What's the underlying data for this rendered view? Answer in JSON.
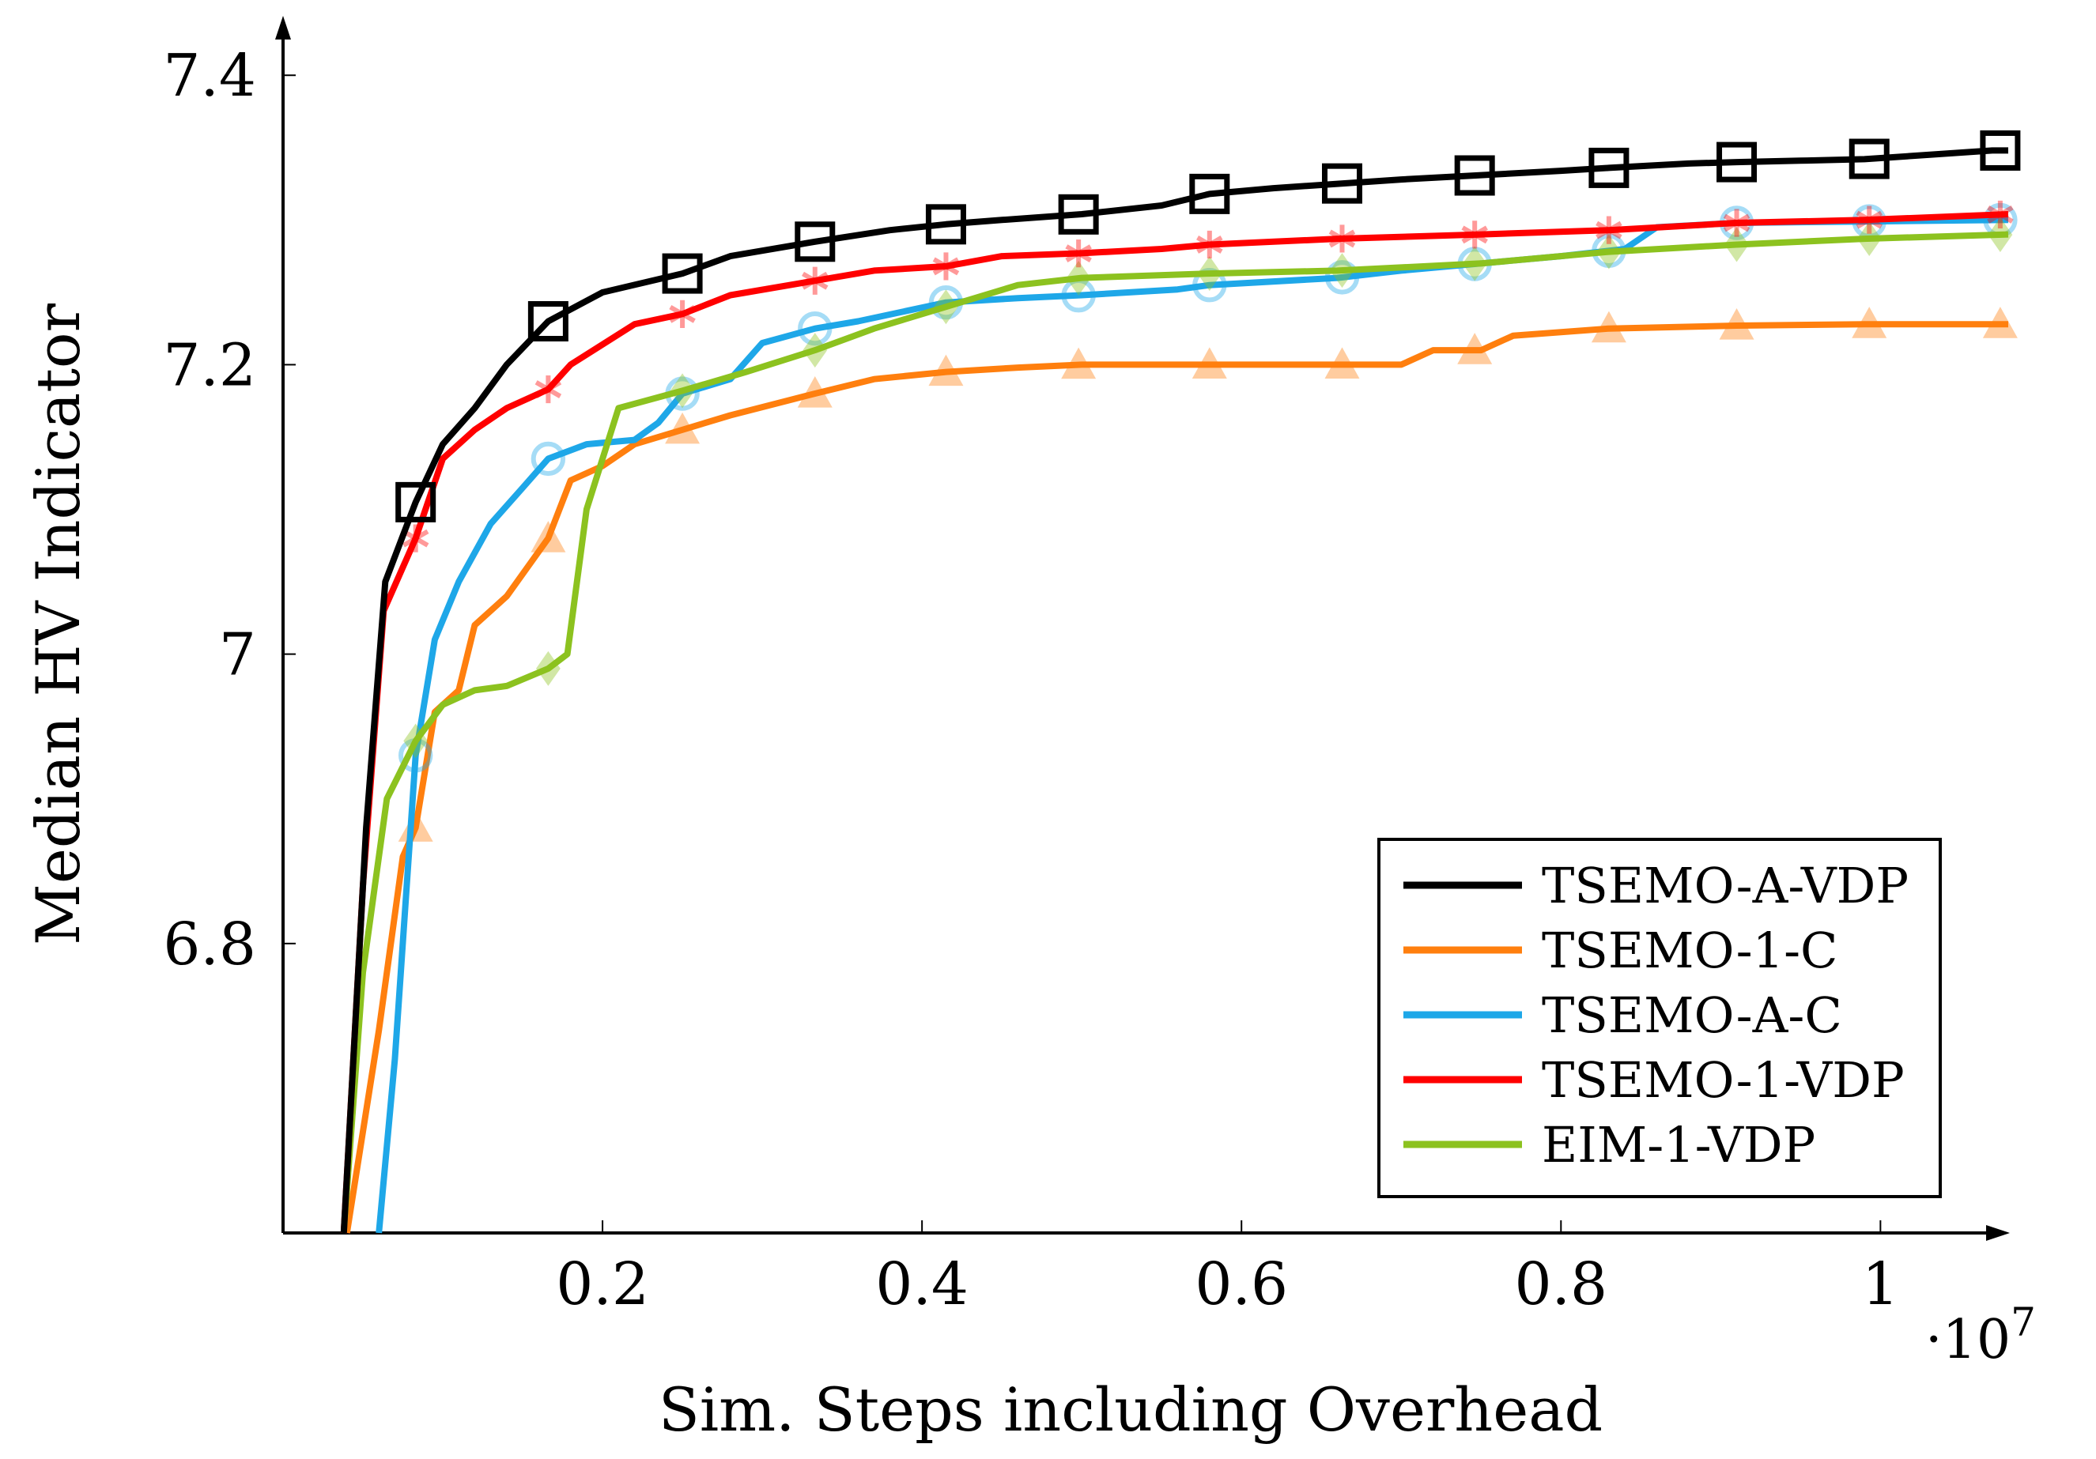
{
  "chart_data": {
    "type": "line",
    "title": "",
    "xlabel": "Sim. Steps including Overhead",
    "ylabel": "Median HV Indicator",
    "x_exponent_label": "·10",
    "x_exponent_power": "7",
    "x_scale": 10000000,
    "xlim": [
      0.0,
      1.08
    ],
    "ylim": [
      6.6,
      7.44
    ],
    "x_ticks": [
      0.2,
      0.4,
      0.6,
      0.8,
      1.0
    ],
    "x_tick_labels": [
      "0.2",
      "0.4",
      "0.6",
      "0.8",
      "1"
    ],
    "y_ticks": [
      6.8,
      7.0,
      7.2,
      7.4
    ],
    "y_tick_labels": [
      "6.8",
      "7",
      "7.2",
      "7.4"
    ],
    "grid": false,
    "legend_position": "bottom-right",
    "series": [
      {
        "name": "TSEMO-A-VDP",
        "color": "#000000",
        "marker": "square",
        "x": [
          0.038,
          0.052,
          0.064,
          0.083,
          0.1,
          0.12,
          0.14,
          0.166,
          0.2,
          0.25,
          0.28,
          0.333,
          0.38,
          0.415,
          0.45,
          0.5,
          0.55,
          0.58,
          0.62,
          0.66,
          0.7,
          0.75,
          0.8,
          0.83,
          0.88,
          0.91,
          0.95,
          0.99,
          1.03,
          1.07,
          1.08
        ],
        "y": [
          6.6,
          6.88,
          7.05,
          7.105,
          7.145,
          7.17,
          7.2,
          7.23,
          7.25,
          7.263,
          7.275,
          7.285,
          7.293,
          7.297,
          7.3,
          7.304,
          7.31,
          7.318,
          7.322,
          7.325,
          7.328,
          7.331,
          7.334,
          7.336,
          7.339,
          7.34,
          7.341,
          7.342,
          7.345,
          7.348,
          7.348
        ]
      },
      {
        "name": "TSEMO-1-C",
        "color": "#FF7F0E",
        "marker": "triangle",
        "x": [
          0.04,
          0.06,
          0.075,
          0.083,
          0.095,
          0.11,
          0.12,
          0.14,
          0.166,
          0.18,
          0.2,
          0.22,
          0.25,
          0.28,
          0.333,
          0.37,
          0.415,
          0.46,
          0.5,
          0.58,
          0.66,
          0.7,
          0.72,
          0.75,
          0.77,
          0.83,
          0.91,
          0.99,
          1.08
        ],
        "y": [
          6.6,
          6.74,
          6.86,
          6.88,
          6.96,
          6.975,
          7.02,
          7.04,
          7.08,
          7.12,
          7.13,
          7.145,
          7.155,
          7.165,
          7.18,
          7.19,
          7.195,
          7.198,
          7.2,
          7.2,
          7.2,
          7.2,
          7.21,
          7.21,
          7.22,
          7.225,
          7.227,
          7.228,
          7.228
        ]
      },
      {
        "name": "TSEMO-A-C",
        "color": "#1EA7E8",
        "marker": "circle",
        "x": [
          0.06,
          0.07,
          0.083,
          0.095,
          0.11,
          0.13,
          0.15,
          0.166,
          0.19,
          0.22,
          0.235,
          0.25,
          0.28,
          0.3,
          0.333,
          0.36,
          0.415,
          0.46,
          0.5,
          0.56,
          0.58,
          0.66,
          0.7,
          0.75,
          0.8,
          0.84,
          0.86,
          0.91,
          0.99,
          1.08
        ],
        "y": [
          6.6,
          6.72,
          6.93,
          7.01,
          7.05,
          7.09,
          7.115,
          7.135,
          7.145,
          7.148,
          7.16,
          7.18,
          7.19,
          7.215,
          7.225,
          7.23,
          7.243,
          7.246,
          7.248,
          7.252,
          7.255,
          7.26,
          7.265,
          7.27,
          7.275,
          7.28,
          7.295,
          7.298,
          7.299,
          7.3
        ]
      },
      {
        "name": "TSEMO-1-VDP",
        "color": "#FF0000",
        "marker": "asterisk",
        "x": [
          0.038,
          0.05,
          0.063,
          0.083,
          0.1,
          0.12,
          0.14,
          0.166,
          0.18,
          0.22,
          0.25,
          0.28,
          0.333,
          0.37,
          0.415,
          0.45,
          0.5,
          0.55,
          0.58,
          0.66,
          0.75,
          0.83,
          0.91,
          0.99,
          1.08
        ],
        "y": [
          6.6,
          6.84,
          7.03,
          7.08,
          7.135,
          7.155,
          7.17,
          7.183,
          7.2,
          7.228,
          7.235,
          7.248,
          7.258,
          7.265,
          7.268,
          7.275,
          7.277,
          7.28,
          7.283,
          7.287,
          7.29,
          7.293,
          7.298,
          7.3,
          7.304
        ]
      },
      {
        "name": "EIM-1-VDP",
        "color": "#8CC21F",
        "marker": "diamond",
        "x": [
          0.038,
          0.05,
          0.065,
          0.083,
          0.1,
          0.12,
          0.14,
          0.166,
          0.178,
          0.19,
          0.21,
          0.25,
          0.29,
          0.333,
          0.37,
          0.415,
          0.46,
          0.5,
          0.58,
          0.66,
          0.75,
          0.83,
          0.91,
          0.99,
          1.08
        ],
        "y": [
          6.6,
          6.78,
          6.9,
          6.94,
          6.965,
          6.975,
          6.978,
          6.99,
          7.0,
          7.1,
          7.17,
          7.182,
          7.195,
          7.21,
          7.225,
          7.24,
          7.255,
          7.26,
          7.263,
          7.265,
          7.27,
          7.278,
          7.283,
          7.287,
          7.29
        ]
      }
    ],
    "marker_x": [
      0.083,
      0.166,
      0.25,
      0.333,
      0.415,
      0.498,
      0.58,
      0.663,
      0.746,
      0.83,
      0.91,
      0.993,
      1.075
    ]
  }
}
